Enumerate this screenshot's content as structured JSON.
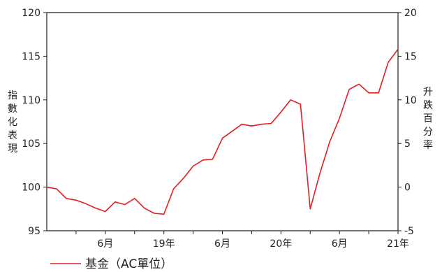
{
  "chart_data": {
    "type": "line",
    "y_left_label": "指數化表現",
    "y_right_label": "升跌百分率",
    "y_left_ticks": [
      "95",
      "100",
      "105",
      "110",
      "115",
      "120"
    ],
    "y_right_ticks": [
      "-5",
      "0",
      "5",
      "10",
      "15",
      "20"
    ],
    "ylim_left": [
      95,
      120
    ],
    "ylim_right": [
      -5,
      20
    ],
    "x_tick_labels": [
      "6月",
      "19年",
      "6月",
      "20年",
      "6月",
      "21年"
    ],
    "grid": false,
    "legend_position": "bottom-left",
    "series": [
      {
        "name": "基金（AC單位）",
        "color": "#e31e24",
        "values": [
          100.0,
          99.8,
          98.7,
          98.5,
          98.1,
          97.6,
          97.2,
          98.3,
          98.0,
          98.7,
          97.6,
          97.0,
          96.9,
          99.8,
          101.0,
          102.4,
          103.1,
          103.2,
          105.6,
          106.4,
          107.2,
          107.0,
          107.2,
          107.3,
          108.6,
          110.0,
          109.5,
          97.5,
          101.6,
          105.2,
          107.9,
          111.2,
          111.8,
          110.8,
          110.8,
          114.3,
          115.8
        ]
      }
    ]
  },
  "legend": {
    "label": "基金（AC單位）"
  }
}
